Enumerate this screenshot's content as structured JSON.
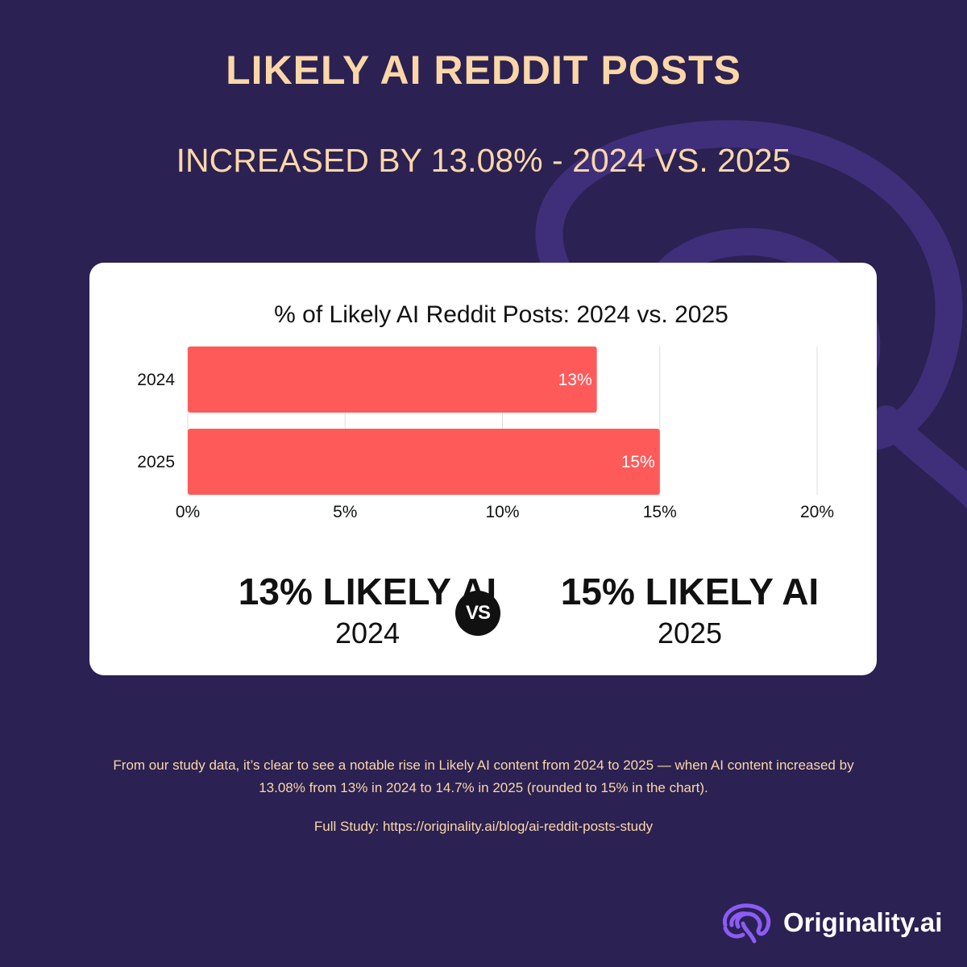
{
  "header": {
    "title": "LIKELY AI REDDIT POSTS",
    "subtitle": "INCREASED BY 13.08% - 2024 VS. 2025"
  },
  "chart_data": {
    "type": "bar",
    "orientation": "horizontal",
    "title": "% of Likely AI Reddit Posts: 2024 vs. 2025",
    "categories": [
      "2024",
      "2025"
    ],
    "values": [
      13,
      15
    ],
    "data_labels": [
      "13%",
      "15%"
    ],
    "xlim": [
      0,
      20
    ],
    "xticks": [
      0,
      5,
      10,
      15,
      20
    ],
    "xtick_labels": [
      "0%",
      "5%",
      "10%",
      "15%",
      "20%"
    ],
    "grid": true,
    "bar_color": "#ff5a5a"
  },
  "comparison": {
    "left": {
      "headline": "13% LIKELY AI",
      "year": "2024"
    },
    "vs_label": "VS",
    "right": {
      "headline": "15% LIKELY AI",
      "year": "2025"
    }
  },
  "footer": {
    "note": "From our study data, it’s clear to see a notable rise in Likely AI content from 2024 to 2025 — when AI content increased by 13.08% from 13% in 2024 to 14.7% in 2025 (rounded to 15% in the chart).",
    "study_link": "Full Study: https://originality.ai/blog/ai-reddit-posts-study"
  },
  "brand": {
    "name": "Originality.ai",
    "icon": "brain-logo-icon"
  },
  "colors": {
    "background": "#2b2152",
    "accent_text": "#fbd7a8",
    "bar": "#ff5a5a",
    "swirl": "#3f2f7a",
    "logo": "#8b5cf6"
  }
}
